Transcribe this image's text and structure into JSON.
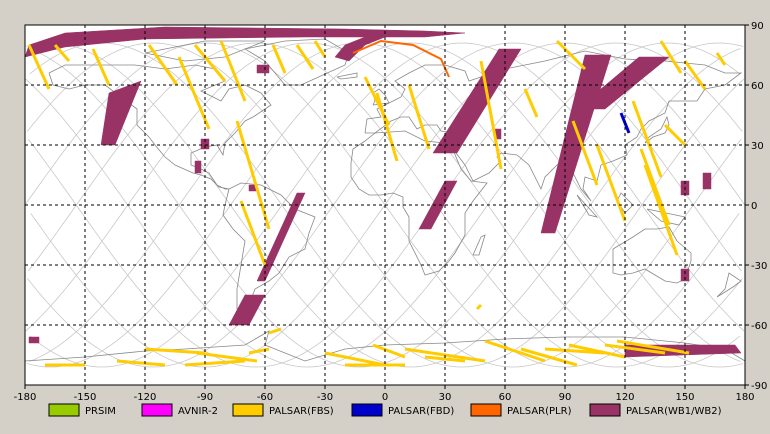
{
  "map": {
    "projection": "equirectangular",
    "lon_range": [
      -180,
      180
    ],
    "lat_range": [
      -90,
      90
    ],
    "x_ticks": [
      "-180",
      "-150",
      "-120",
      "-90",
      "-60",
      "-30",
      "0",
      "30",
      "60",
      "90",
      "120",
      "150",
      "180"
    ],
    "y_ticks": [
      "90",
      "60",
      "30",
      "0",
      "-30",
      "-60",
      "-90"
    ],
    "grid": "dashed"
  },
  "legend": [
    {
      "label": "PRSIM",
      "color": "#99cc00"
    },
    {
      "label": "AVNIR-2",
      "color": "#ff00ff"
    },
    {
      "label": "PALSAR(FBS)",
      "color": "#ffcc00"
    },
    {
      "label": "PALSAR(FBD)",
      "color": "#0000cc"
    },
    {
      "label": "PALSAR(PLR)",
      "color": "#ff6600"
    },
    {
      "label": "PALSAR(WB1/WB2)",
      "color": "#993366"
    }
  ],
  "colors": {
    "background": "#d4d0c8",
    "map_background": "#ffffff",
    "coastline": "#888888",
    "orbit_track": "#c8c8c8",
    "wb": "#993366",
    "fbs": "#ffcc00",
    "fbd": "#0000cc",
    "plr": "#ff6600"
  },
  "swaths_wb": [
    [
      [
        -178,
        80
      ],
      [
        -160,
        86
      ],
      [
        -110,
        89
      ],
      [
        -20,
        88
      ],
      [
        20,
        87
      ],
      [
        40,
        86
      ],
      [
        20,
        84
      ],
      [
        -40,
        84
      ],
      [
        -120,
        83
      ],
      [
        -160,
        79
      ],
      [
        -176,
        75
      ],
      [
        -180,
        74
      ]
    ],
    [
      [
        -25,
        74
      ],
      [
        -20,
        80
      ],
      [
        -5,
        86
      ],
      [
        5,
        86
      ],
      [
        -10,
        80
      ],
      [
        -18,
        72
      ]
    ],
    [
      [
        -138,
        56
      ],
      [
        -122,
        62
      ],
      [
        -135,
        30
      ],
      [
        -142,
        30
      ]
    ],
    [
      [
        -64,
        70
      ],
      [
        -58,
        70
      ],
      [
        -58,
        66
      ],
      [
        -64,
        66
      ]
    ],
    [
      [
        -92,
        33
      ],
      [
        -88,
        33
      ],
      [
        -88,
        28
      ],
      [
        -92,
        28
      ]
    ],
    [
      [
        -95,
        22
      ],
      [
        -92,
        22
      ],
      [
        -92,
        16
      ],
      [
        -95,
        16
      ]
    ],
    [
      [
        -44,
        6
      ],
      [
        -40,
        6
      ],
      [
        -60,
        -38
      ],
      [
        -64,
        -38
      ]
    ],
    [
      [
        -70,
        -45
      ],
      [
        -60,
        -45
      ],
      [
        -68,
        -60
      ],
      [
        -78,
        -60
      ]
    ],
    [
      [
        57,
        78
      ],
      [
        68,
        78
      ],
      [
        36,
        26
      ],
      [
        24,
        26
      ]
    ],
    [
      [
        30,
        12
      ],
      [
        36,
        12
      ],
      [
        23,
        -12
      ],
      [
        17,
        -12
      ]
    ],
    [
      [
        100,
        75
      ],
      [
        113,
        75
      ],
      [
        85,
        -14
      ],
      [
        78,
        -14
      ]
    ],
    [
      [
        127,
        74
      ],
      [
        142,
        74
      ],
      [
        110,
        48
      ],
      [
        96,
        48
      ]
    ],
    [
      [
        36,
        44
      ],
      [
        40,
        44
      ],
      [
        40,
        36
      ],
      [
        36,
        36
      ]
    ],
    [
      [
        55,
        38
      ],
      [
        58,
        38
      ],
      [
        58,
        33
      ],
      [
        55,
        33
      ]
    ],
    [
      [
        148,
        12
      ],
      [
        152,
        12
      ],
      [
        152,
        5
      ],
      [
        148,
        5
      ]
    ],
    [
      [
        159,
        16
      ],
      [
        163,
        16
      ],
      [
        163,
        8
      ],
      [
        159,
        8
      ]
    ],
    [
      [
        148,
        -32
      ],
      [
        152,
        -32
      ],
      [
        152,
        -38
      ],
      [
        148,
        -38
      ]
    ],
    [
      [
        120,
        -70
      ],
      [
        175,
        -70
      ],
      [
        178,
        -74
      ],
      [
        120,
        -76
      ]
    ],
    [
      [
        -178,
        -66
      ],
      [
        -173,
        -66
      ],
      [
        -173,
        -69
      ],
      [
        -178,
        -69
      ]
    ],
    [
      [
        -68,
        10
      ],
      [
        -64,
        10
      ],
      [
        -64,
        7
      ],
      [
        -68,
        7
      ]
    ]
  ],
  "tracks_fbs": [
    [
      [
        -178,
        80
      ],
      [
        -168,
        58
      ]
    ],
    [
      [
        -165,
        80
      ],
      [
        -158,
        72
      ]
    ],
    [
      [
        -146,
        78
      ],
      [
        -138,
        60
      ]
    ],
    [
      [
        -118,
        80
      ],
      [
        -104,
        60
      ]
    ],
    [
      [
        -103,
        74
      ],
      [
        -88,
        38
      ]
    ],
    [
      [
        -95,
        80
      ],
      [
        -80,
        62
      ]
    ],
    [
      [
        -82,
        82
      ],
      [
        -70,
        52
      ]
    ],
    [
      [
        -74,
        42
      ],
      [
        -58,
        -12
      ]
    ],
    [
      [
        -72,
        2
      ],
      [
        -60,
        -30
      ]
    ],
    [
      [
        -56,
        80
      ],
      [
        -50,
        66
      ]
    ],
    [
      [
        -44,
        80
      ],
      [
        -36,
        68
      ]
    ],
    [
      [
        -35,
        82
      ],
      [
        -30,
        74
      ]
    ],
    [
      [
        -10,
        64
      ],
      [
        2,
        40
      ]
    ],
    [
      [
        -4,
        56
      ],
      [
        6,
        22
      ]
    ],
    [
      [
        12,
        60
      ],
      [
        22,
        28
      ]
    ],
    [
      [
        48,
        72
      ],
      [
        58,
        18
      ]
    ],
    [
      [
        70,
        58
      ],
      [
        76,
        44
      ]
    ],
    [
      [
        86,
        82
      ],
      [
        100,
        68
      ]
    ],
    [
      [
        94,
        42
      ],
      [
        106,
        10
      ]
    ],
    [
      [
        106,
        30
      ],
      [
        120,
        -8
      ]
    ],
    [
      [
        124,
        52
      ],
      [
        138,
        14
      ]
    ],
    [
      [
        128,
        28
      ],
      [
        142,
        -10
      ]
    ],
    [
      [
        130,
        20
      ],
      [
        146,
        -25
      ]
    ],
    [
      [
        138,
        82
      ],
      [
        148,
        66
      ]
    ],
    [
      [
        150,
        72
      ],
      [
        160,
        58
      ]
    ],
    [
      [
        140,
        40
      ],
      [
        150,
        30
      ]
    ],
    [
      [
        166,
        76
      ],
      [
        170,
        70
      ]
    ],
    [
      [
        -170,
        -80
      ],
      [
        -150,
        -80
      ]
    ],
    [
      [
        -134,
        -78
      ],
      [
        -110,
        -80
      ]
    ],
    [
      [
        -120,
        -72
      ],
      [
        -90,
        -74
      ]
    ],
    [
      [
        -100,
        -80
      ],
      [
        -70,
        -78
      ]
    ],
    [
      [
        -94,
        -74
      ],
      [
        -64,
        -78
      ]
    ],
    [
      [
        -68,
        -74
      ],
      [
        -58,
        -72
      ]
    ],
    [
      [
        -30,
        -74
      ],
      [
        0,
        -80
      ]
    ],
    [
      [
        -20,
        -80
      ],
      [
        10,
        -80
      ]
    ],
    [
      [
        10,
        -72
      ],
      [
        50,
        -78
      ]
    ],
    [
      [
        50,
        -68
      ],
      [
        80,
        -78
      ]
    ],
    [
      [
        68,
        -72
      ],
      [
        96,
        -80
      ]
    ],
    [
      [
        80,
        -72
      ],
      [
        110,
        -74
      ]
    ],
    [
      [
        92,
        -70
      ],
      [
        120,
        -76
      ]
    ],
    [
      [
        110,
        -70
      ],
      [
        140,
        -74
      ]
    ],
    [
      [
        116,
        -68
      ],
      [
        152,
        -74
      ]
    ],
    [
      [
        -6,
        -70
      ],
      [
        10,
        -76
      ]
    ],
    [
      [
        20,
        -76
      ],
      [
        40,
        -78
      ]
    ],
    [
      [
        -58,
        -64
      ],
      [
        -52,
        -62
      ]
    ],
    [
      [
        46,
        -52
      ],
      [
        48,
        -50
      ]
    ]
  ],
  "tracks_fbd": [
    [
      [
        118,
        46
      ],
      [
        122,
        36
      ]
    ]
  ],
  "tracks_plr": [
    [
      [
        -16,
        76
      ],
      [
        -2,
        82
      ],
      [
        14,
        80
      ],
      [
        28,
        73
      ],
      [
        32,
        64
      ]
    ]
  ]
}
